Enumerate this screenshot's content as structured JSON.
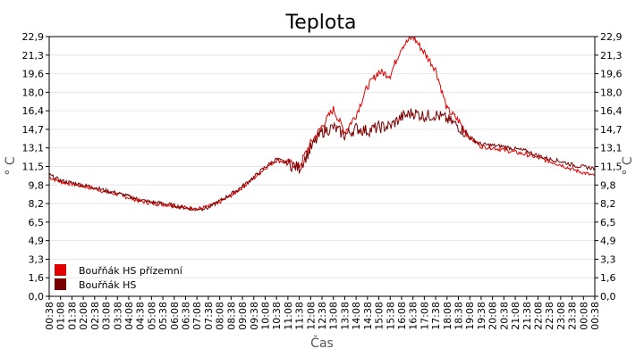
{
  "chart_data": {
    "type": "line",
    "title": "Teplota",
    "xlabel": "Čas",
    "ylabel": "° C",
    "y2label": "° C",
    "ylim": [
      0,
      22.9
    ],
    "yticks": [
      "0,0",
      "1,6",
      "3,3",
      "4,9",
      "6,5",
      "8,2",
      "9,8",
      "11,5",
      "13,1",
      "14,7",
      "16,4",
      "18,0",
      "19,6",
      "21,3",
      "22,9"
    ],
    "grid": true,
    "legend_position": "bottom-left",
    "x": [
      "00:38",
      "01:08",
      "01:38",
      "02:08",
      "02:38",
      "03:08",
      "03:38",
      "04:08",
      "04:38",
      "05:08",
      "05:38",
      "06:08",
      "06:38",
      "07:08",
      "07:38",
      "08:08",
      "08:38",
      "09:08",
      "09:38",
      "10:08",
      "10:38",
      "11:08",
      "11:38",
      "12:08",
      "12:38",
      "13:08",
      "13:38",
      "14:08",
      "14:38",
      "15:08",
      "15:38",
      "16:08",
      "16:38",
      "17:08",
      "17:38",
      "18:08",
      "18:38",
      "19:08",
      "19:38",
      "20:08",
      "20:38",
      "21:08",
      "21:38",
      "22:08",
      "22:38",
      "23:08",
      "23:38",
      "00:08",
      "00:38"
    ],
    "series": [
      {
        "name": "Bouřňák HS přízemní",
        "color": "#e00000",
        "values": [
          10.5,
          10.1,
          9.9,
          9.7,
          9.5,
          9.2,
          9.0,
          8.7,
          8.4,
          8.2,
          8.1,
          8.0,
          7.8,
          7.7,
          7.9,
          8.3,
          8.9,
          9.6,
          10.4,
          11.3,
          12.0,
          11.8,
          11.5,
          13.5,
          15.0,
          16.5,
          14.5,
          16.0,
          18.5,
          19.8,
          19.5,
          22.0,
          22.9,
          21.5,
          20.0,
          16.5,
          15.5,
          14.0,
          13.2,
          13.1,
          12.9,
          12.7,
          12.5,
          12.2,
          11.9,
          11.6,
          11.2,
          10.9,
          10.6
        ]
      },
      {
        "name": "Bouřňák HS",
        "color": "#7a0000",
        "values": [
          10.7,
          10.2,
          10.0,
          9.8,
          9.6,
          9.3,
          9.1,
          8.8,
          8.5,
          8.3,
          8.2,
          8.0,
          7.8,
          7.7,
          7.8,
          8.4,
          9.0,
          9.7,
          10.5,
          11.4,
          12.1,
          11.7,
          11.3,
          13.0,
          14.5,
          14.9,
          14.2,
          14.8,
          14.6,
          14.9,
          15.0,
          15.8,
          16.2,
          15.9,
          16.0,
          15.6,
          15.0,
          14.0,
          13.4,
          13.3,
          13.2,
          13.0,
          12.8,
          12.4,
          12.1,
          11.9,
          11.6,
          11.4,
          11.3
        ]
      }
    ]
  }
}
